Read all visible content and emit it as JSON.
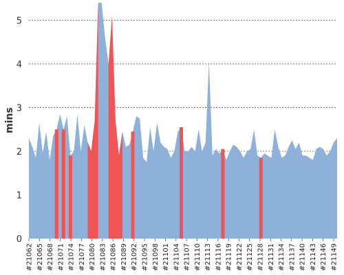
{
  "chart_data": {
    "type": "area",
    "ylabel": "mins",
    "ylim": [
      0,
      5.4
    ],
    "yticks": [
      0,
      1,
      2,
      3,
      4,
      5
    ],
    "grid": true,
    "x_start": 21062,
    "x_end": 21150,
    "tick_labels": [
      "#21062",
      "#21065",
      "#21068",
      "#21071",
      "#21074",
      "#21077",
      "#21080",
      "#21083",
      "#21086",
      "#21089",
      "#21092",
      "#21095",
      "#21098",
      "#21101",
      "#21104",
      "#21107",
      "#21110",
      "#21113",
      "#21116",
      "#21119",
      "#21122",
      "#21125",
      "#21128",
      "#21131",
      "#21134",
      "#21137",
      "#21140",
      "#21143",
      "#21146",
      "#21149"
    ],
    "series": [
      {
        "color": "#8eb1da",
        "values": [
          2.3,
          2.1,
          1.85,
          2.65,
          1.95,
          2.45,
          1.8,
          2.35,
          2.5,
          2.85,
          2.5,
          2.8,
          1.9,
          2.0,
          2.85,
          2.0,
          2.6,
          2.2,
          2.0,
          2.7,
          5.4,
          5.4,
          4.6,
          4.0,
          5.1,
          2.7,
          1.9,
          2.45,
          2.1,
          2.15,
          2.45,
          2.8,
          2.75,
          1.85,
          1.75,
          2.55,
          2.0,
          2.65,
          2.2,
          2.1,
          2.05,
          1.85,
          2.0,
          2.45,
          2.55,
          2.0,
          2.0,
          2.1,
          2.0,
          2.5,
          2.0,
          2.2,
          4.05,
          1.9,
          2.05,
          1.95,
          2.05,
          1.8,
          2.0,
          2.15,
          2.1,
          2.0,
          1.85,
          2.0,
          2.05,
          2.5,
          1.9,
          1.85,
          1.95,
          1.9,
          1.85,
          2.5,
          2.1,
          1.85,
          1.9,
          2.1,
          2.25,
          2.05,
          2.2,
          1.9,
          1.9,
          1.85,
          1.8,
          2.05,
          2.1,
          2.05,
          1.9,
          2.0,
          2.2,
          2.3
        ]
      }
    ],
    "highlight": {
      "color": "#f05454",
      "indices": [
        8,
        10,
        12,
        17,
        18,
        19,
        20,
        23,
        24,
        25,
        26,
        27,
        30,
        44,
        56,
        67
      ]
    }
  }
}
